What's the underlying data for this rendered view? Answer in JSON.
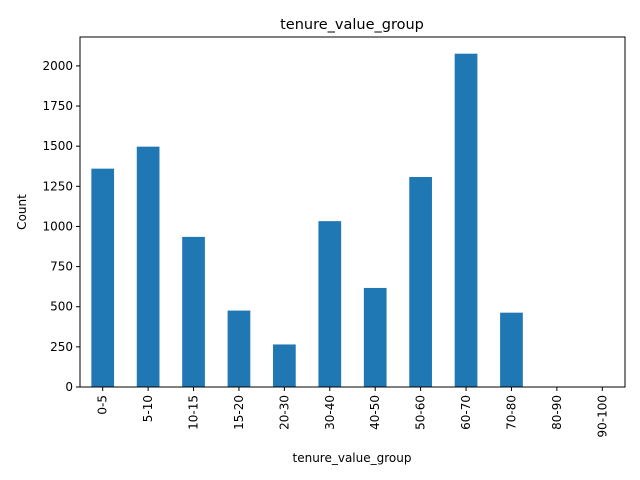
{
  "chart_data": {
    "type": "bar",
    "title": "tenure_value_group",
    "xlabel": "tenure_value_group",
    "ylabel": "Count",
    "categories": [
      "0-5",
      "5-10",
      "10-15",
      "15-20",
      "20-30",
      "30-40",
      "40-50",
      "50-60",
      "60-70",
      "70-80",
      "80-90",
      "90-100"
    ],
    "values": [
      1360,
      1497,
      935,
      476,
      265,
      1033,
      617,
      1308,
      2076,
      463,
      0,
      0
    ],
    "ylim": [
      0,
      2180
    ],
    "yticks": [
      0,
      250,
      500,
      750,
      1000,
      1250,
      1500,
      1750,
      2000
    ],
    "bar_color": "#1f77b4",
    "grid": false,
    "legend": "none"
  }
}
